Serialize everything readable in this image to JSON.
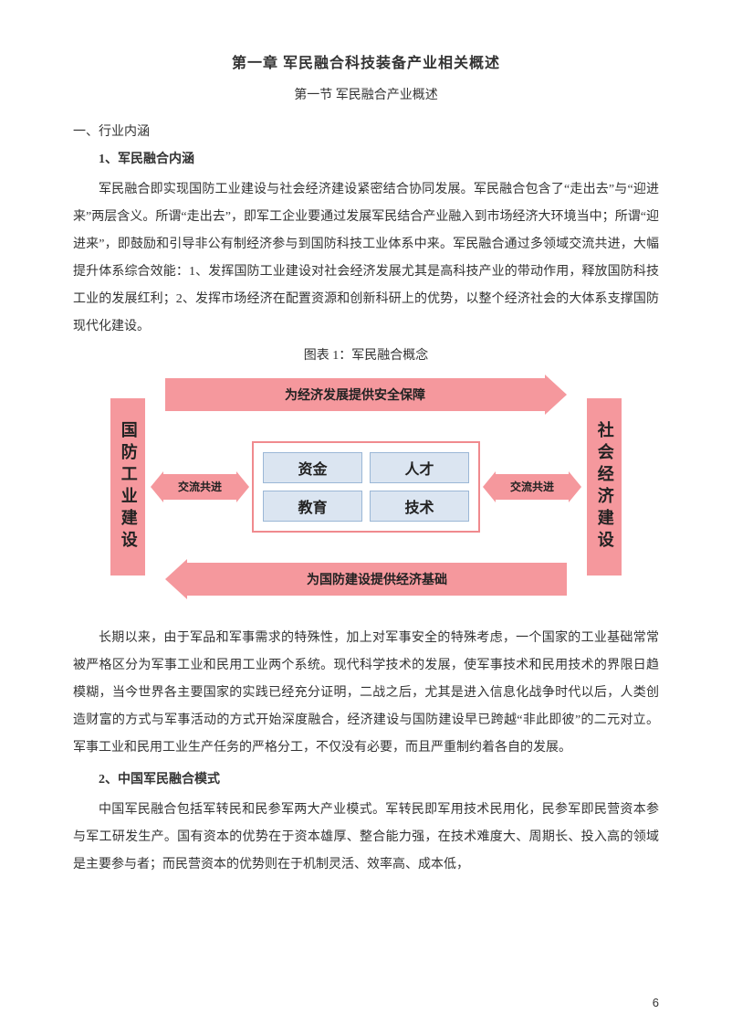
{
  "chapter_title": "第一章   军民融合科技装备产业相关概述",
  "section_title": "第一节  军民融合产业概述",
  "heading_1": "一、行业内涵",
  "heading_1_1": "1、军民融合内涵",
  "para_1": "军民融合即实现国防工业建设与社会经济建设紧密结合协同发展。军民融合包含了“走出去”与“迎进来”两层含义。所谓“走出去”，即军工企业要通过发展军民结合产业融入到市场经济大环境当中；所谓“迎进来”，即鼓励和引导非公有制经济参与到国防科技工业体系中来。军民融合通过多领域交流共进，大幅提升体系综合效能：1、发挥国防工业建设对社会经济发展尤其是高科技产业的带动作用，释放国防科技工业的发展红利；2、发挥市场经济在配置资源和创新科研上的优势，以整个经济社会的大体系支撑国防现代化建设。",
  "figure_caption": "图表  1：军民融合概念",
  "figure": {
    "type": "flowchart",
    "left_box": "国防工业建设",
    "right_box": "社会经济建设",
    "top_arrow_label": "为经济发展提供安全保障",
    "bottom_arrow_label": "为国防建设提供经济基础",
    "mid_label": "交流共进",
    "center_cells": [
      "资金",
      "人才",
      "教育",
      "技术"
    ],
    "colors": {
      "box_fill": "#f5989d",
      "center_border": "#f08a8e",
      "cell_fill": "#dbe5f1",
      "cell_border": "#9bb7d6",
      "text": "#222222"
    }
  },
  "para_2": "长期以来，由于军品和军事需求的特殊性，加上对军事安全的特殊考虑，一个国家的工业基础常常被严格区分为军事工业和民用工业两个系统。现代科学技术的发展，使军事技术和民用技术的界限日趋模糊，当今世界各主要国家的实践已经充分证明，二战之后，尤其是进入信息化战争时代以后，人类创造财富的方式与军事活动的方式开始深度融合，经济建设与国防建设早已跨越“非此即彼”的二元对立。军事工业和民用工业生产任务的严格分工，不仅没有必要，而且严重制约着各自的发展。",
  "heading_1_2": "2、中国军民融合模式",
  "para_3": "中国军民融合包括军转民和民参军两大产业模式。军转民即军用技术民用化，民参军即民营资本参与军工研发生产。国有资本的优势在于资本雄厚、整合能力强，在技术难度大、周期长、投入高的领域是主要参与者；而民营资本的优势则在于机制灵活、效率高、成本低，",
  "page_number": "6"
}
